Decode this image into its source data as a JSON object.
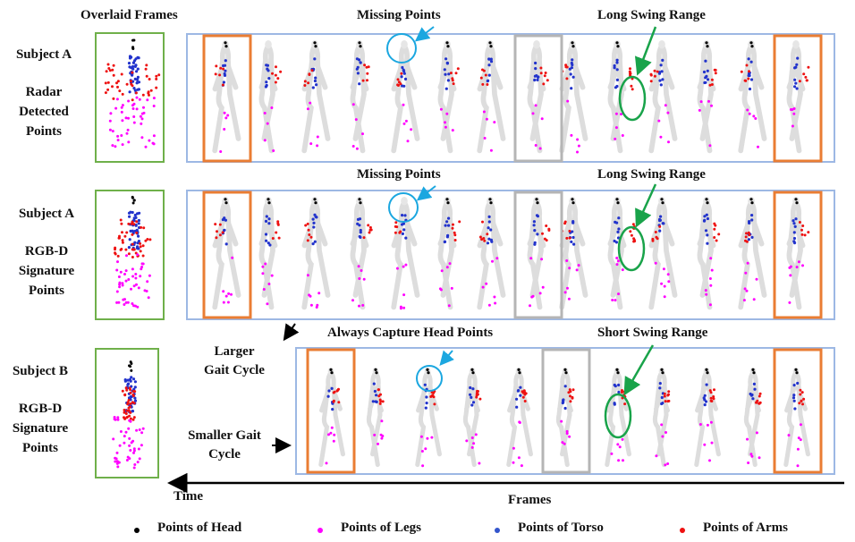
{
  "headers": {
    "overlaid": "Overlaid Frames",
    "missing_1": "Missing  Points",
    "long_swing_1": "Long Swing Range",
    "missing_2": "Missing  Points",
    "long_swing_2": "Long Swing Range",
    "always_head": "Always Capture Head Points",
    "short_swing": "Short Swing Range"
  },
  "rows": [
    {
      "subject": "Subject A",
      "type_lines": [
        "Radar",
        "Detected",
        "Points"
      ]
    },
    {
      "subject": "Subject A",
      "type_lines": [
        "RGB-D",
        "Signature",
        "Points"
      ]
    },
    {
      "subject": "Subject B",
      "type_lines": [
        "RGB-D",
        "Signature",
        "Points"
      ]
    }
  ],
  "annotations": {
    "larger_gait": [
      "Larger",
      "Gait Cycle"
    ],
    "smaller_gait": [
      "Smaller Gait",
      "Cycle"
    ]
  },
  "axis": {
    "time": "Time",
    "frames": "Frames"
  },
  "legend": [
    {
      "label": "Points of Head",
      "color": "#000000"
    },
    {
      "label": "Points of Legs",
      "color": "#ff00ff"
    },
    {
      "label": "Points of Torso",
      "color": "#3355cc"
    },
    {
      "label": "Points of Arms",
      "color": "#ee1111"
    }
  ],
  "colors": {
    "head": "#000000",
    "legs": "#ff00ff",
    "torso": "#2233cc",
    "arms": "#ee1111",
    "frame_box": "#9db8e4",
    "overlaid_box": "#6fb04a",
    "highlight_box": "#ea7d33",
    "cycle_box": "#b5b5b5",
    "missing_callout": "#1ba7e0",
    "swing_callout": "#19a34a"
  }
}
